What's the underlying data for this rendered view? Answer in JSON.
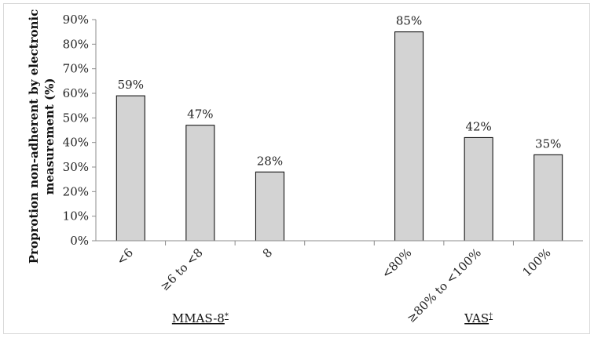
{
  "chart_data": {
    "type": "bar",
    "ylabel_line1": "Proprotion non-adherent by electronic",
    "ylabel_line2": "measurement (%)",
    "ylim": [
      0,
      90
    ],
    "yticks": [
      "0%",
      "10%",
      "20%",
      "30%",
      "40%",
      "50%",
      "60%",
      "70%",
      "80%",
      "90%"
    ],
    "grid": false,
    "categories": [
      "<6",
      "≥6 to <8",
      "8",
      "",
      "<80%",
      "≥80% to <100%",
      "100%"
    ],
    "values": [
      59,
      47,
      28,
      null,
      85,
      42,
      35
    ],
    "data_labels": [
      "59%",
      "47%",
      "28%",
      "",
      "85%",
      "42%",
      "35%"
    ],
    "bar_color": "#d3d3d3",
    "groups": [
      {
        "label": "MMAS-8",
        "sup": "*"
      },
      {
        "label": "VAS",
        "sup": "†"
      }
    ]
  }
}
